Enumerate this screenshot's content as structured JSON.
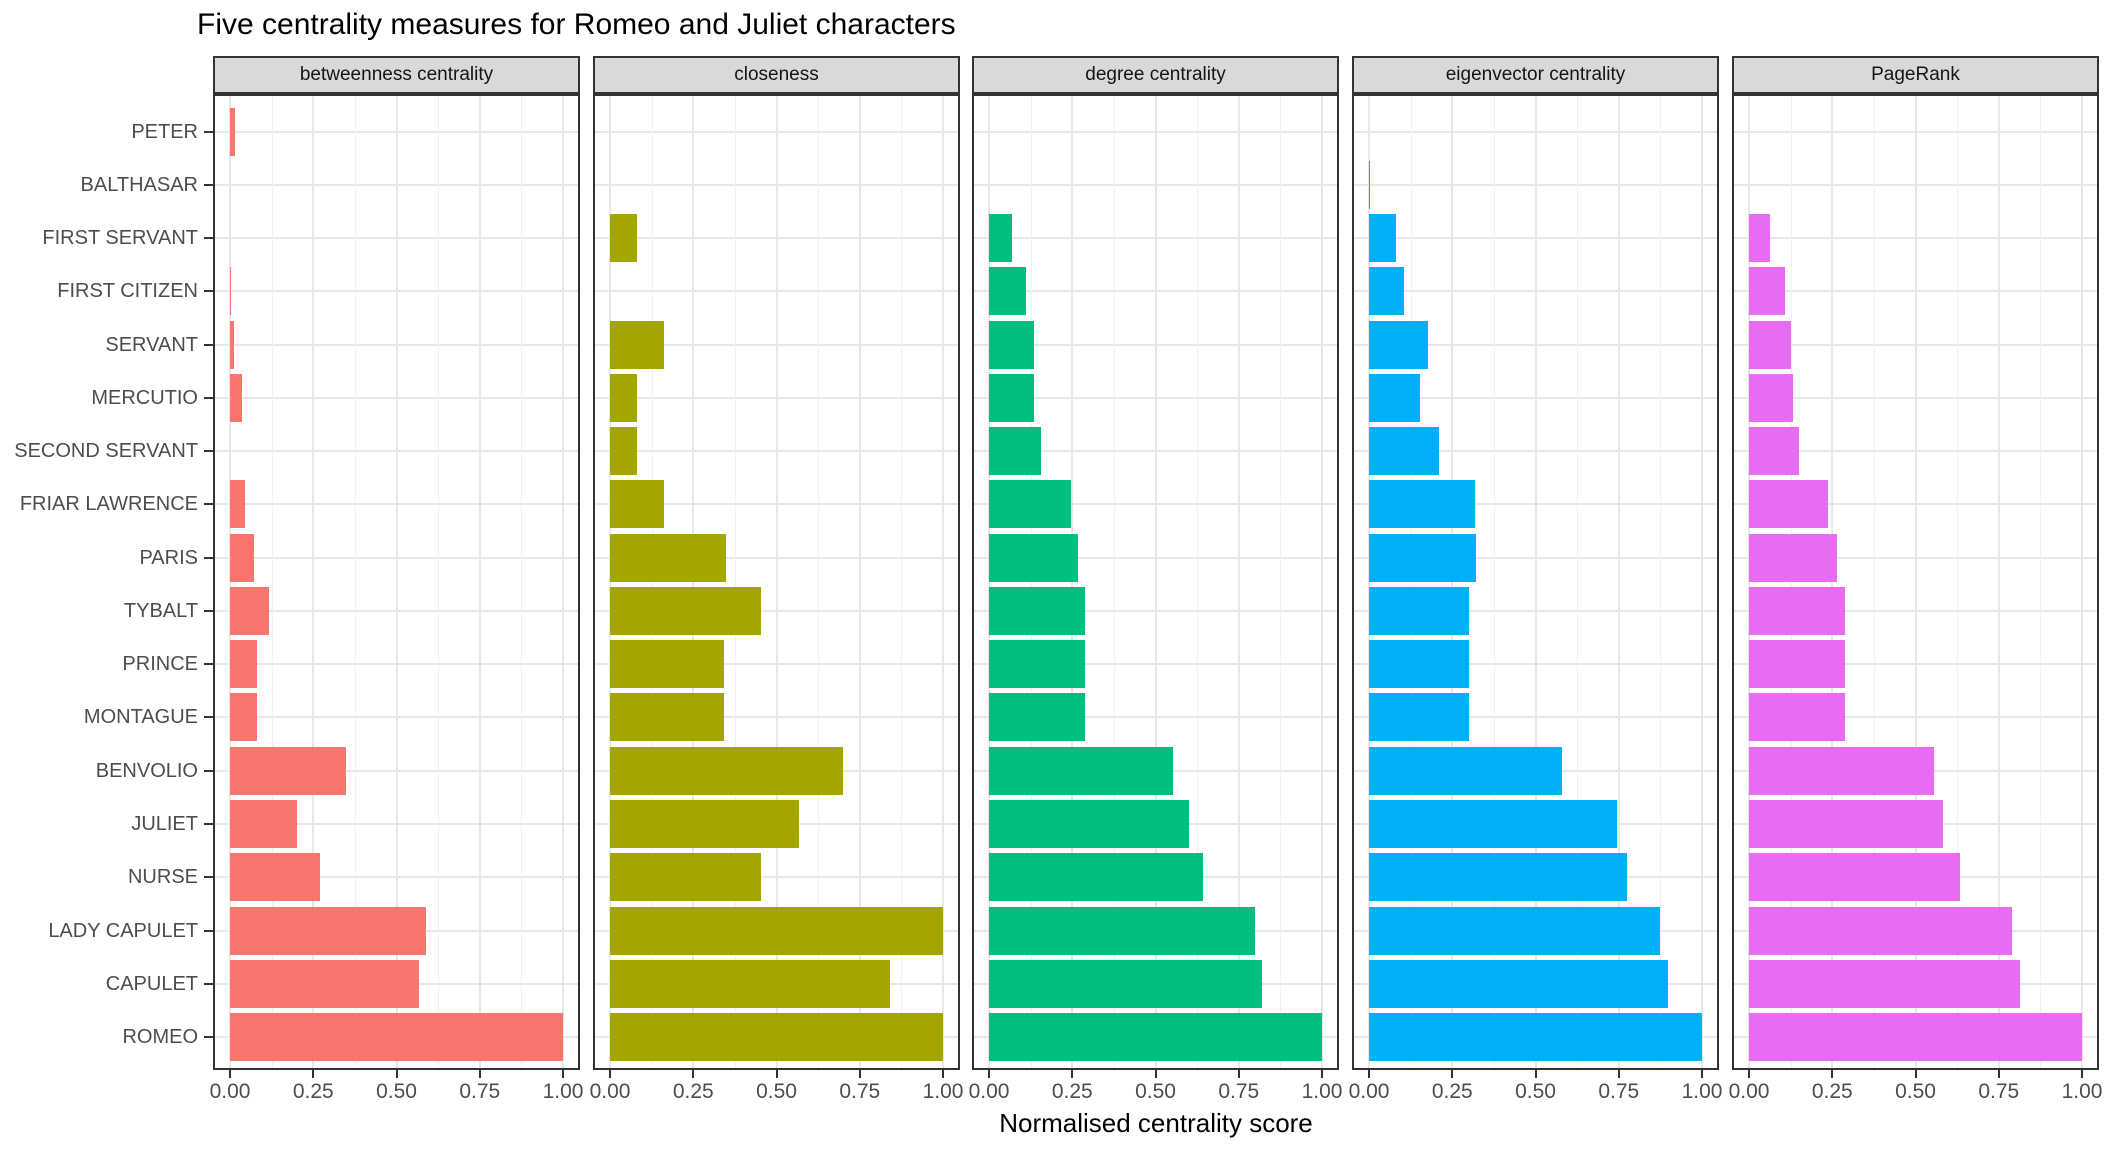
{
  "title": "Five centrality measures for Romeo and Juliet characters",
  "x_axis": {
    "title": "Normalised centrality score",
    "ticks": [
      "0.00",
      "0.25",
      "0.50",
      "0.75",
      "1.00"
    ],
    "tick_values": [
      0,
      0.25,
      0.5,
      0.75,
      1
    ]
  },
  "style": {
    "strip_background": "#d9d9d9",
    "panel_border": "#333333",
    "grid_major": "#e7e7e7",
    "grid_minor": "#f1f1f1",
    "axis_text": "#4d4d4d",
    "title_text": "#000000"
  },
  "chart_data": {
    "type": "bar",
    "orientation": "horizontal",
    "xlim": [
      0,
      1
    ],
    "grid": true,
    "legend": "none",
    "facet_labels": [
      "betweenness centrality",
      "closeness",
      "degree centrality",
      "eigenvector centrality",
      "PageRank"
    ],
    "categories": [
      "PETER",
      "BALTHASAR",
      "FIRST SERVANT",
      "FIRST CITIZEN",
      "SERVANT",
      "MERCUTIO",
      "SECOND SERVANT",
      "FRIAR LAWRENCE",
      "PARIS",
      "TYBALT",
      "PRINCE",
      "MONTAGUE",
      "BENVOLIO",
      "JULIET",
      "NURSE",
      "LADY CAPULET",
      "CAPULET",
      "ROMEO"
    ],
    "series": [
      {
        "name": "betweenness centrality",
        "color": "#F8766D",
        "values": [
          0.015,
          0,
          0,
          0.004,
          0.012,
          0.036,
          0,
          0.045,
          0.072,
          0.118,
          0.081,
          0.081,
          0.348,
          0.202,
          0.27,
          0.59,
          0.567,
          1
        ]
      },
      {
        "name": "closeness",
        "color": "#A3A500",
        "values": [
          0,
          0,
          0.081,
          0,
          0.162,
          0.081,
          0.081,
          0.162,
          0.348,
          0.452,
          0.343,
          0.343,
          0.699,
          0.569,
          0.452,
          1,
          0.84,
          1
        ]
      },
      {
        "name": "degree centrality",
        "color": "#00BF7D",
        "values": [
          0,
          0,
          0.069,
          0.11,
          0.134,
          0.134,
          0.155,
          0.245,
          0.266,
          0.289,
          0.289,
          0.289,
          0.554,
          0.6,
          0.643,
          0.8,
          0.82,
          1
        ]
      },
      {
        "name": "eigenvector centrality",
        "color": "#00B0F6",
        "values": [
          0,
          0.004,
          0.081,
          0.105,
          0.177,
          0.153,
          0.21,
          0.318,
          0.321,
          0.3,
          0.3,
          0.3,
          0.579,
          0.746,
          0.776,
          0.874,
          0.897,
          1
        ]
      },
      {
        "name": "PageRank",
        "color": "#E76BF3",
        "values": [
          0,
          0,
          0.064,
          0.109,
          0.127,
          0.133,
          0.151,
          0.238,
          0.265,
          0.289,
          0.289,
          0.289,
          0.557,
          0.584,
          0.635,
          0.791,
          0.814,
          1
        ]
      }
    ]
  }
}
